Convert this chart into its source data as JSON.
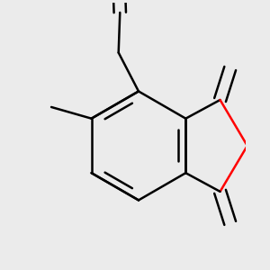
{
  "background_color": "#ebebeb",
  "bond_color": "#000000",
  "oxygen_color": "#ff0000",
  "line_width": 1.8,
  "figsize": [
    3.0,
    3.0
  ],
  "dpi": 100
}
